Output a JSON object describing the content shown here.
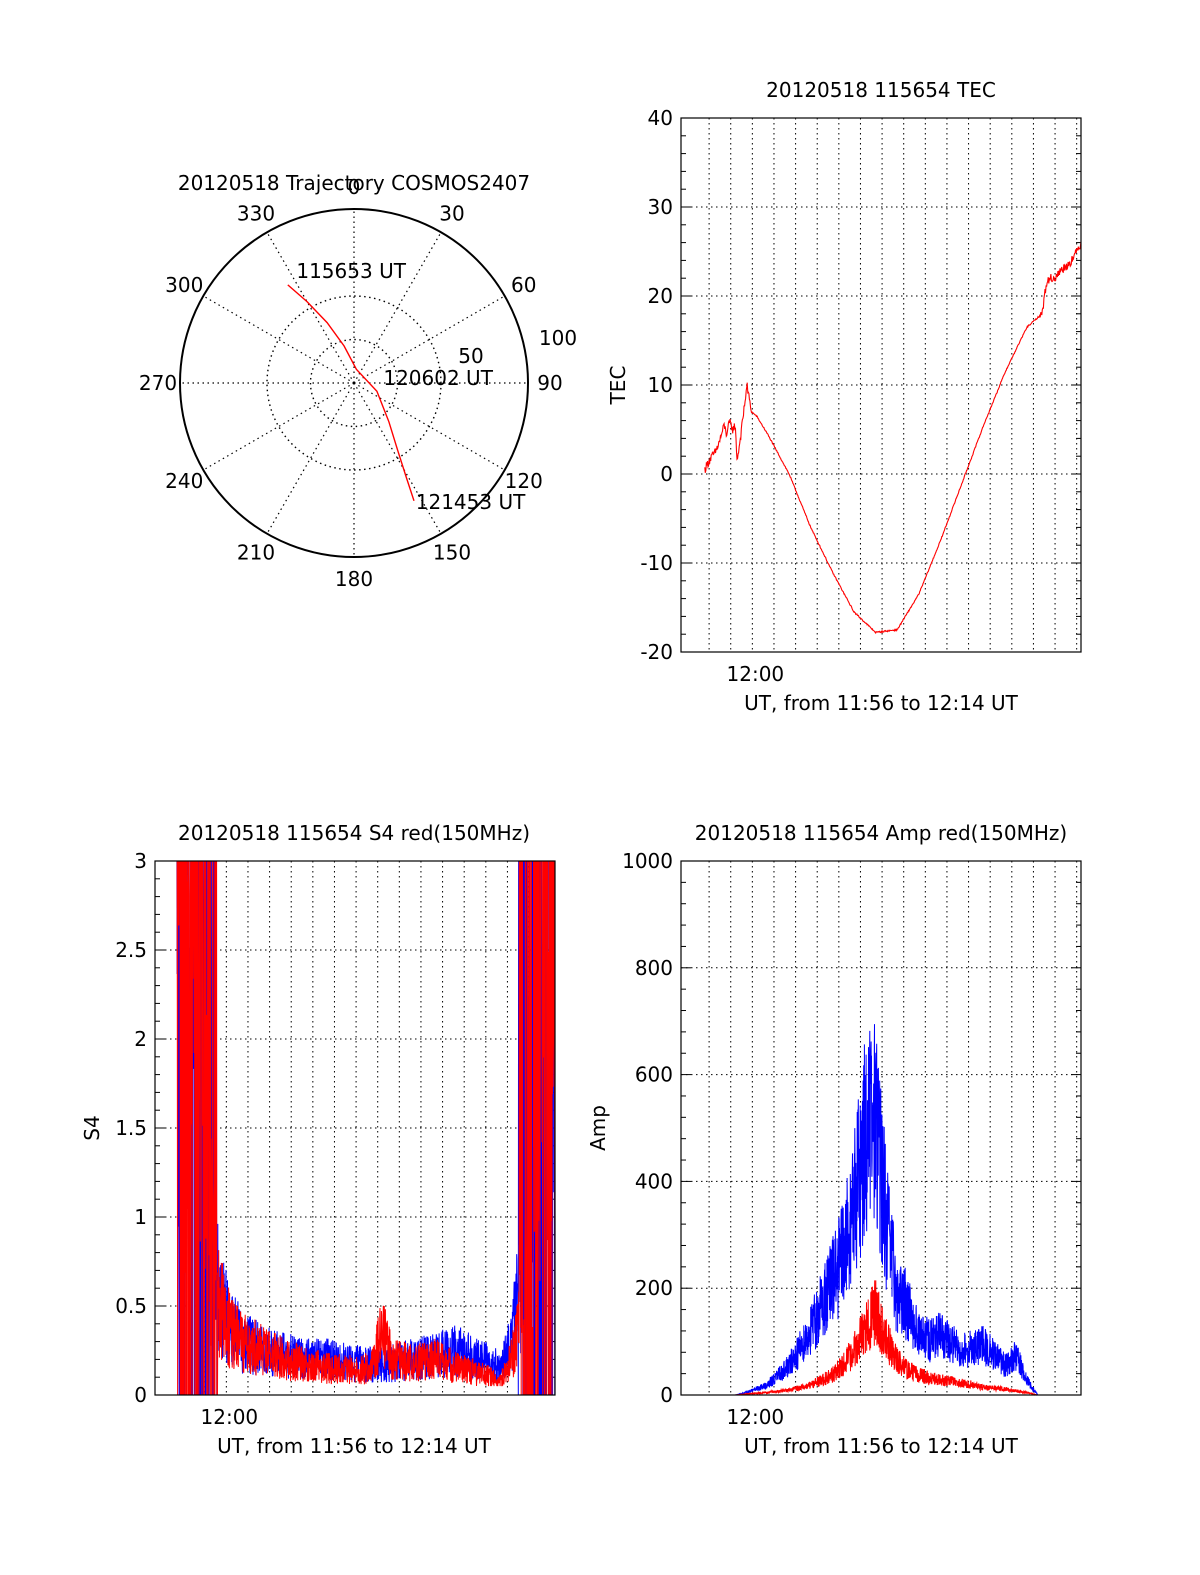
{
  "chart_data": [
    {
      "type": "polar",
      "title": "20120518 Trajectory COSMOS2407",
      "angle_labels": [
        "0",
        "30",
        "60",
        "90",
        "120",
        "150",
        "180",
        "210",
        "240",
        "270",
        "300",
        "330"
      ],
      "radius_labels": [
        "50",
        "100"
      ],
      "track": {
        "color": "#ff0000",
        "points": [
          {
            "az": 326,
            "r": 68
          },
          {
            "az": 330,
            "r": 54
          },
          {
            "az": 336,
            "r": 38
          },
          {
            "az": 345,
            "r": 22
          },
          {
            "az": 10,
            "r": 8
          },
          {
            "az": 110,
            "r": 14
          },
          {
            "az": 138,
            "r": 30
          },
          {
            "az": 147,
            "r": 46
          },
          {
            "az": 151,
            "r": 62
          },
          {
            "az": 153,
            "r": 76
          }
        ]
      },
      "annotations": [
        {
          "text": "115653 UT",
          "az": 338,
          "r": 70
        },
        {
          "text": "120602 UT",
          "az": 82,
          "r": 24
        },
        {
          "text": "121453 UT",
          "az": 148,
          "r": 80
        }
      ]
    },
    {
      "type": "line",
      "title": "20120518 115654 TEC",
      "xlabel": "UT, from 11:56 to 12:14 UT",
      "ylabel": "TEC",
      "xlim": [
        0,
        18.5
      ],
      "ylim": [
        -20,
        40
      ],
      "x_tick_labels": [
        {
          "x": 3.3,
          "label": "12:00"
        }
      ],
      "y_ticks": [
        -20,
        -10,
        0,
        10,
        20,
        30,
        40
      ],
      "grid": true,
      "series": [
        {
          "color": "#ff0000",
          "x": [
            1.1,
            1.3,
            1.6,
            1.8,
            2.0,
            2.1,
            2.25,
            2.4,
            2.5,
            2.6,
            2.8,
            2.9,
            3.05,
            3.25,
            3.5,
            4.0,
            5.0,
            6.0,
            7.0,
            8.0,
            9.0,
            10.0,
            11.0,
            12.0,
            13.0,
            14.0,
            15.0,
            16.0,
            16.7,
            16.9,
            17.1,
            17.3,
            17.6,
            17.9,
            18.2,
            18.5
          ],
          "y": [
            0.5,
            1.5,
            2.5,
            3.8,
            5.5,
            4.5,
            5.8,
            5.0,
            5.5,
            1.5,
            5.0,
            7.0,
            10.0,
            7.0,
            6.5,
            4.5,
            0.0,
            -6.0,
            -11.0,
            -15.5,
            -17.8,
            -17.5,
            -13.5,
            -7.5,
            -1.0,
            5.5,
            11.5,
            16.5,
            18.0,
            21.5,
            22.0,
            22.0,
            23.0,
            23.5,
            24.5,
            26.0
          ]
        }
      ]
    },
    {
      "type": "line",
      "title": "20120518 115654 S4 red(150MHz)",
      "xlabel": "UT, from 11:56 to 12:14 UT",
      "ylabel": "S4",
      "xlim": [
        0,
        18.5
      ],
      "ylim": [
        0,
        3
      ],
      "x_tick_labels": [
        {
          "x": 3.3,
          "label": "12:00"
        }
      ],
      "y_ticks": [
        0,
        0.5,
        1,
        1.5,
        2,
        2.5,
        3
      ],
      "y_tick_labels": [
        "0",
        "0.5",
        "1",
        "1.5",
        "2",
        "2.5",
        "3"
      ],
      "grid": true,
      "series": [
        {
          "color": "#0000ff",
          "x": [
            1.0,
            1.5,
            2.0,
            2.5,
            2.8,
            3.0,
            3.5,
            4.0,
            5.0,
            6.0,
            7.0,
            8.0,
            9.0,
            10.0,
            11.0,
            12.0,
            13.0,
            14.0,
            15.0,
            15.5,
            16.0,
            16.5,
            17.0,
            17.5,
            18.0,
            18.5
          ],
          "y": [
            3.0,
            2.5,
            3.0,
            1.5,
            0.8,
            0.5,
            0.4,
            0.3,
            0.25,
            0.22,
            0.2,
            0.2,
            0.18,
            0.17,
            0.18,
            0.2,
            0.22,
            0.25,
            0.2,
            0.18,
            0.15,
            0.3,
            0.8,
            1.8,
            2.8,
            2.0
          ]
        },
        {
          "color": "#ff0000",
          "x": [
            1.0,
            1.5,
            2.0,
            2.5,
            2.8,
            3.0,
            3.5,
            4.0,
            5.0,
            6.0,
            7.0,
            8.0,
            9.0,
            10.0,
            10.5,
            11.0,
            12.0,
            13.0,
            14.0,
            15.0,
            16.0,
            16.5,
            17.0,
            17.5,
            18.0,
            18.5
          ],
          "y": [
            3.0,
            2.0,
            2.5,
            1.0,
            0.6,
            0.5,
            0.35,
            0.3,
            0.25,
            0.2,
            0.17,
            0.15,
            0.14,
            0.15,
            0.35,
            0.2,
            0.18,
            0.2,
            0.15,
            0.12,
            0.08,
            0.2,
            0.5,
            1.2,
            2.5,
            3.0
          ]
        }
      ]
    },
    {
      "type": "line",
      "title": "20120518 115654 Amp red(150MHz)",
      "xlabel": "UT, from 11:56 to 12:14 UT",
      "ylabel": "Amp",
      "xlim": [
        0,
        18.5
      ],
      "ylim": [
        0,
        1000
      ],
      "x_tick_labels": [
        {
          "x": 3.3,
          "label": "12:00"
        }
      ],
      "y_ticks": [
        0,
        200,
        400,
        600,
        800,
        1000
      ],
      "grid": true,
      "series": [
        {
          "color": "#0000ff",
          "x": [
            0.5,
            2.5,
            3.0,
            4.0,
            5.0,
            6.0,
            7.0,
            7.5,
            8.0,
            8.5,
            9.0,
            9.5,
            10.0,
            10.5,
            11.0,
            11.5,
            12.0,
            13.0,
            14.0,
            15.0,
            15.5,
            16.0,
            16.5,
            17.0,
            18.5
          ],
          "y": [
            0,
            0,
            5,
            20,
            60,
            130,
            230,
            280,
            380,
            520,
            560,
            350,
            200,
            180,
            120,
            110,
            120,
            90,
            100,
            60,
            80,
            30,
            0,
            0,
            0
          ]
        },
        {
          "color": "#ff0000",
          "x": [
            0.5,
            2.5,
            3.0,
            4.0,
            5.0,
            6.0,
            7.0,
            7.5,
            8.0,
            8.5,
            9.0,
            9.5,
            10.0,
            10.5,
            11.0,
            12.0,
            13.0,
            14.0,
            15.0,
            15.5,
            16.0,
            16.5,
            18.5
          ],
          "y": [
            0,
            0,
            2,
            5,
            10,
            20,
            40,
            60,
            90,
            130,
            170,
            110,
            70,
            50,
            40,
            30,
            25,
            15,
            12,
            8,
            5,
            0,
            0
          ]
        }
      ]
    }
  ]
}
